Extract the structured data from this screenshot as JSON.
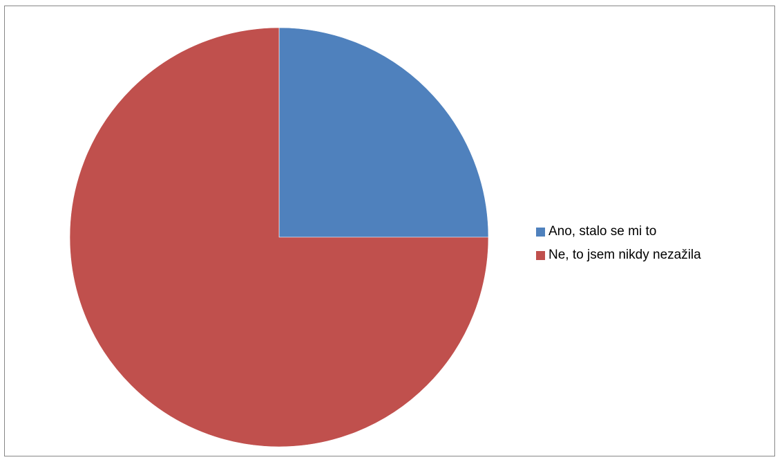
{
  "chart_data": {
    "type": "pie",
    "title": "",
    "slices": [
      {
        "label": "Ano, stalo se mi to",
        "value": 25,
        "color": "#4F81BD"
      },
      {
        "label": "Ne, to jsem nikdy nezažila",
        "value": 75,
        "color": "#C0504D"
      }
    ],
    "start_angle": "12 o'clock",
    "direction": "clockwise",
    "legend_position": "right"
  }
}
